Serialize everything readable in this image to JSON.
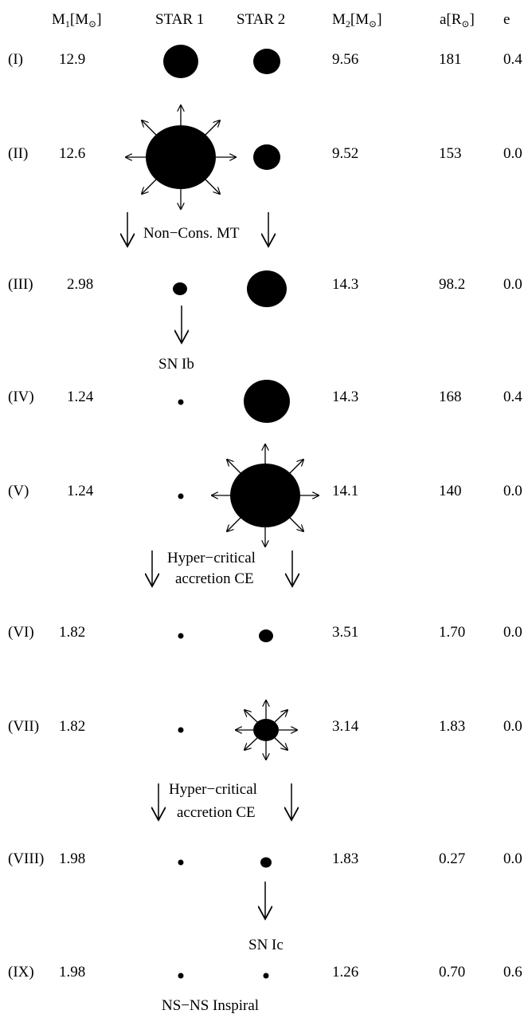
{
  "headers": {
    "m1": "M",
    "m1_sub": "1",
    "m1_unit": "[M",
    "m1_sun": "⊙",
    "m1_close": "]",
    "star1": "STAR 1",
    "star2": "STAR 2",
    "m2": "M",
    "m2_sub": "2",
    "m2_unit": "[M",
    "m2_sun": "⊙",
    "m2_close": "]",
    "a": "a[R",
    "a_sun": "⊙",
    "a_close": "]",
    "e": "e"
  },
  "stages": [
    {
      "label": "(I)",
      "m1": "12.9",
      "m2": "9.56",
      "a": "181",
      "e": "0.4",
      "star1_state": "normal",
      "star2_state": "normal"
    },
    {
      "label": "(II)",
      "m1": "12.6",
      "m2": "9.52",
      "a": "153",
      "e": "0.0",
      "star1_state": "expanding",
      "star2_state": "normal"
    },
    {
      "label": "(III)",
      "m1": "2.98",
      "m2": "14.3",
      "a": "98.2",
      "e": "0.0",
      "star1_state": "stripped",
      "star2_state": "normal"
    },
    {
      "label": "(IV)",
      "m1": "1.24",
      "m2": "14.3",
      "a": "168",
      "e": "0.4",
      "star1_state": "neutron-star",
      "star2_state": "normal"
    },
    {
      "label": "(V)",
      "m1": "1.24",
      "m2": "14.1",
      "a": "140",
      "e": "0.0",
      "star1_state": "neutron-star",
      "star2_state": "expanding"
    },
    {
      "label": "(VI)",
      "m1": "1.82",
      "m2": "3.51",
      "a": "1.70",
      "e": "0.0",
      "star1_state": "neutron-star",
      "star2_state": "stripped"
    },
    {
      "label": "(VII)",
      "m1": "1.82",
      "m2": "3.14",
      "a": "1.83",
      "e": "0.0",
      "star1_state": "neutron-star",
      "star2_state": "expanding"
    },
    {
      "label": "(VIII)",
      "m1": "1.98",
      "m2": "1.83",
      "a": "0.27",
      "e": "0.0",
      "star1_state": "neutron-star",
      "star2_state": "stripped"
    },
    {
      "label": "(IX)",
      "m1": "1.98",
      "m2": "1.26",
      "a": "0.70",
      "e": "0.6",
      "star1_state": "neutron-star",
      "star2_state": "neutron-star"
    }
  ],
  "transitions": {
    "nonconservative_mt": "Non−Cons. MT",
    "sn_ib": "SN Ib",
    "hyper_critical_1_line1": "Hyper−critical",
    "hyper_critical_1_line2": "accretion CE",
    "hyper_critical_2_line1": "Hyper−critical",
    "hyper_critical_2_line2": "accretion CE",
    "sn_ic": "SN Ic",
    "final": "NS−NS Inspiral"
  }
}
